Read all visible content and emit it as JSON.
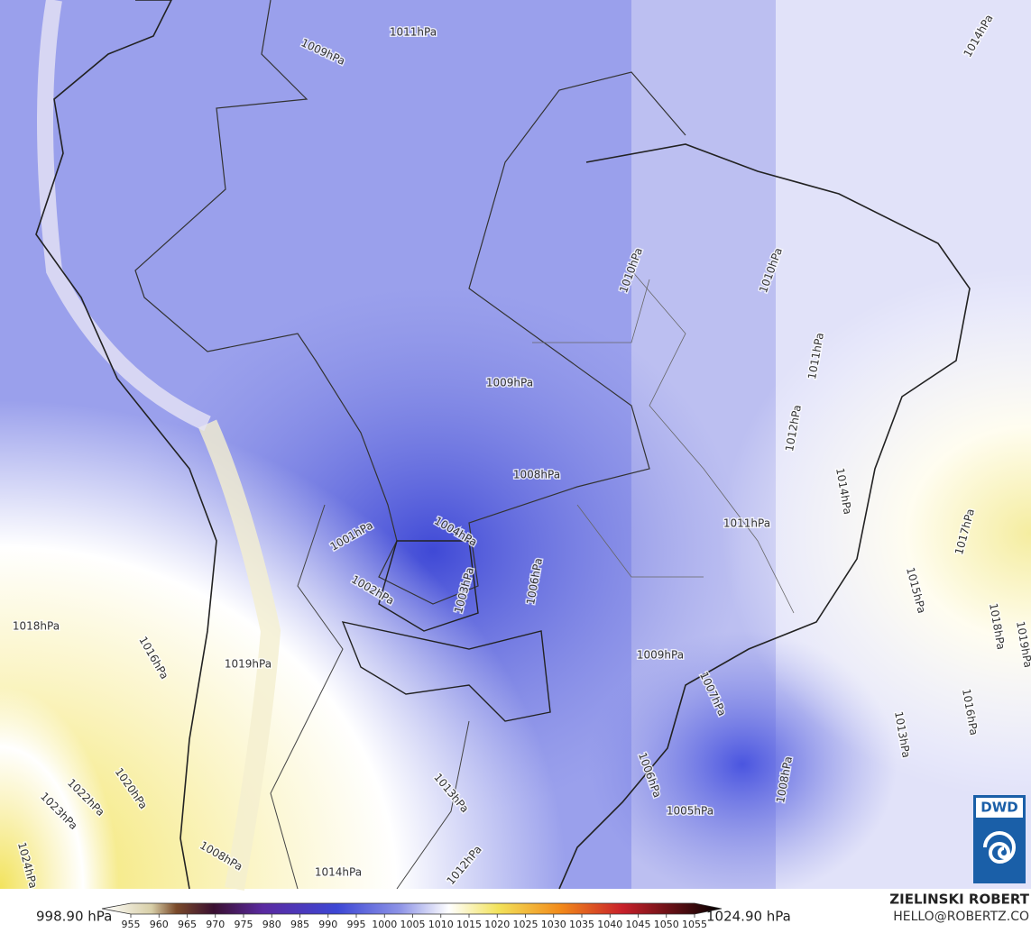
{
  "map": {
    "contour_labels": [
      "1011hPa",
      "1009hPa",
      "1014hPa",
      "1010hPa",
      "1010hPa",
      "1011hPa",
      "1009hPa",
      "1012hPa",
      "1008hPa",
      "1014hPa",
      "1011hPa",
      "1017hPa",
      "1004hPa",
      "1001hPa",
      "1002hPa",
      "1003hPa",
      "1006hPa",
      "1015hPa",
      "1018hPa",
      "1016hPa",
      "1018hPa",
      "1019hPa",
      "1009hPa",
      "1019hPa",
      "1007hPa",
      "1013hPa",
      "1016hPa",
      "1008hPa",
      "1005hPa",
      "1006hPa",
      "1013hPa",
      "1014hPa",
      "1020hPa",
      "1022hPa",
      "1023hPa",
      "1024hPa",
      "1008hPa",
      "1012hPa"
    ]
  },
  "legend": {
    "min_label": "998.90 hPa",
    "max_label": "1024.90 hPa",
    "ticks": [
      955,
      960,
      965,
      970,
      975,
      980,
      985,
      990,
      995,
      1000,
      1005,
      1010,
      1015,
      1020,
      1025,
      1030,
      1035,
      1040,
      1045,
      1050,
      1055
    ]
  },
  "credits": {
    "author": "ZIELINSKI ROBERT",
    "contact": "HELLO@ROBERTZ.CO"
  }
}
